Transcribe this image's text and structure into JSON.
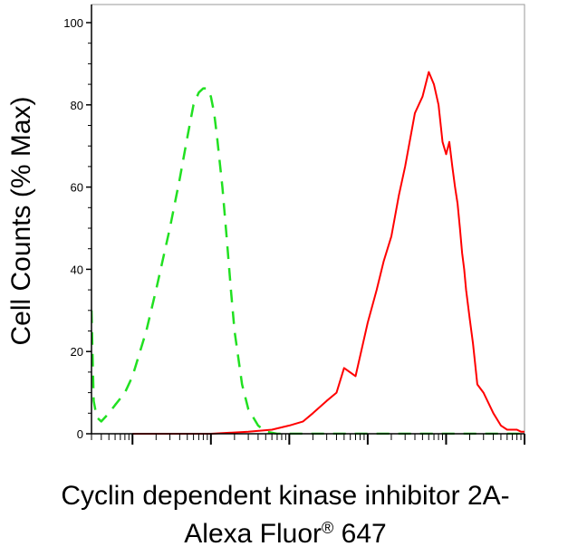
{
  "chart_data": {
    "type": "line",
    "title": "",
    "ylabel": "Cell Counts (% Max)",
    "xlabel_line1": "Cyclin dependent kinase inhibitor 2A-",
    "xlabel_line2": "Alexa Fluor",
    "xlabel_sup": "®",
    "xlabel_line2_end": " 647",
    "x_scale": "log",
    "xlim": [
      0.3,
      100000
    ],
    "ylim": [
      0,
      100
    ],
    "y_ticks": [
      0,
      20,
      40,
      60,
      80,
      100
    ],
    "y_tick_labels": [
      "0",
      "20",
      "40",
      "60",
      "80",
      "100"
    ],
    "grid": false,
    "series": [
      {
        "color": "#21e021",
        "style": "dashed",
        "x": [
          0.3,
          0.32,
          0.35,
          0.4,
          0.5,
          0.6,
          0.8,
          1.0,
          1.5,
          2,
          3,
          4,
          5,
          6,
          7,
          8,
          9,
          10,
          11,
          12,
          14,
          16,
          18,
          20,
          25,
          30,
          40,
          50,
          70,
          100,
          1000,
          10000,
          100000
        ],
        "y": [
          30,
          8,
          4,
          3,
          5,
          7,
          10,
          14,
          25,
          35,
          50,
          62,
          72,
          80,
          83,
          84,
          84,
          82,
          78,
          72,
          60,
          47,
          35,
          25,
          12,
          6,
          2,
          0.5,
          0,
          0,
          0,
          0,
          0
        ]
      },
      {
        "color": "#ff0000",
        "style": "solid",
        "x": [
          1,
          10,
          30,
          60,
          100,
          150,
          200,
          300,
          400,
          500,
          700,
          1000,
          1300,
          1600,
          2000,
          2500,
          3000,
          4000,
          5000,
          6000,
          7000,
          8000,
          9000,
          10000,
          11000,
          12000,
          13000,
          14000,
          15000,
          16000,
          17000,
          18000,
          20000,
          22000,
          25000,
          30000,
          40000,
          50000,
          60000,
          70000,
          80000,
          90000,
          100000
        ],
        "y": [
          0,
          0,
          0.5,
          1,
          2,
          3,
          5,
          8,
          10,
          16,
          14,
          27,
          35,
          42,
          48,
          58,
          65,
          78,
          82,
          88,
          85,
          80,
          71,
          68,
          71,
          65,
          60,
          56,
          50,
          44,
          40,
          35,
          28,
          22,
          12,
          10,
          5,
          2,
          1,
          1,
          1,
          0.5,
          0.5
        ]
      }
    ]
  }
}
